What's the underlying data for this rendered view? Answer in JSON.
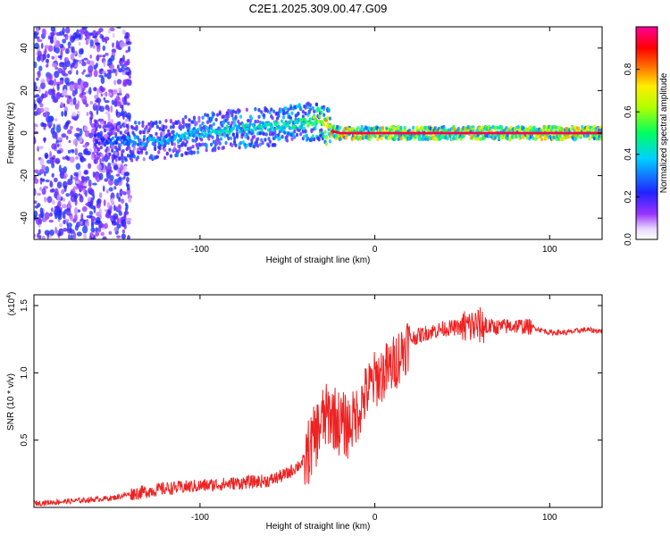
{
  "title": "C2E1.2025.309.00.47.G09",
  "colors": {
    "spectrum_low": "#8a2be2",
    "spectrum_mid": "#00ff80",
    "spectrum_high": "#ff0000",
    "snr_line": "#ee2222",
    "axes": "#000000"
  },
  "chart_data": [
    {
      "type": "heatmap",
      "title": "C2E1.2025.309.00.47.G09",
      "xlabel": "Height of straight line (km)",
      "ylabel": "Frequency (Hz)",
      "xlim": [
        -195,
        130
      ],
      "ylim": [
        -50,
        50
      ],
      "xticks": [
        -100,
        0,
        100
      ],
      "yticks": [
        -40,
        -20,
        0,
        20,
        40
      ],
      "colorbar": {
        "label": "Normalized spectral amplitude",
        "range": [
          0,
          1
        ],
        "ticks": [
          0.0,
          0.2,
          0.4,
          0.6,
          0.8
        ],
        "colormap": "rainbow (white → purple → blue → cyan → green → yellow → red → magenta)"
      },
      "ridge": {
        "x": [
          -180,
          -160,
          -140,
          -120,
          -100,
          -80,
          -60,
          -40,
          -30,
          -25,
          -20,
          0,
          50,
          100,
          130
        ],
        "frequency": [
          0,
          -3,
          -4,
          -3,
          0,
          2,
          3,
          5,
          6,
          1,
          0,
          0,
          0,
          0,
          0
        ],
        "amplitude": [
          0.15,
          0.25,
          0.35,
          0.35,
          0.4,
          0.45,
          0.45,
          0.5,
          0.6,
          0.9,
          0.95,
          0.95,
          0.95,
          0.95,
          0.95
        ]
      }
    },
    {
      "type": "line",
      "xlabel": "Height of straight line (km)",
      "ylabel": "SNR (10 * v/v)",
      "yscale_note": "(x10",
      "yscale_exp": "4",
      "xlim": [
        -195,
        130
      ],
      "ylim": [
        0,
        1.58
      ],
      "xticks": [
        -100,
        0,
        100
      ],
      "yticks": [
        0.5,
        1.0,
        1.5
      ],
      "ytick_labels": [
        "0.5",
        "1.0",
        "1.5"
      ],
      "series": [
        {
          "x": [
            -195,
            -170,
            -150,
            -140,
            -120,
            -100,
            -80,
            -60,
            -50,
            -40,
            -35,
            -30,
            -25,
            -20,
            -15,
            -10,
            -5,
            0,
            5,
            10,
            15,
            20,
            30,
            40,
            50,
            60,
            70,
            80,
            90,
            100,
            110,
            120,
            130
          ],
          "values": [
            0.03,
            0.05,
            0.07,
            0.1,
            0.14,
            0.16,
            0.18,
            0.2,
            0.25,
            0.35,
            0.5,
            0.65,
            0.7,
            0.62,
            0.6,
            0.7,
            0.85,
            0.95,
            1.0,
            1.05,
            1.15,
            1.25,
            1.3,
            1.33,
            1.34,
            1.35,
            1.34,
            1.35,
            1.34,
            1.3,
            1.3,
            1.32,
            1.31
          ]
        }
      ]
    }
  ]
}
